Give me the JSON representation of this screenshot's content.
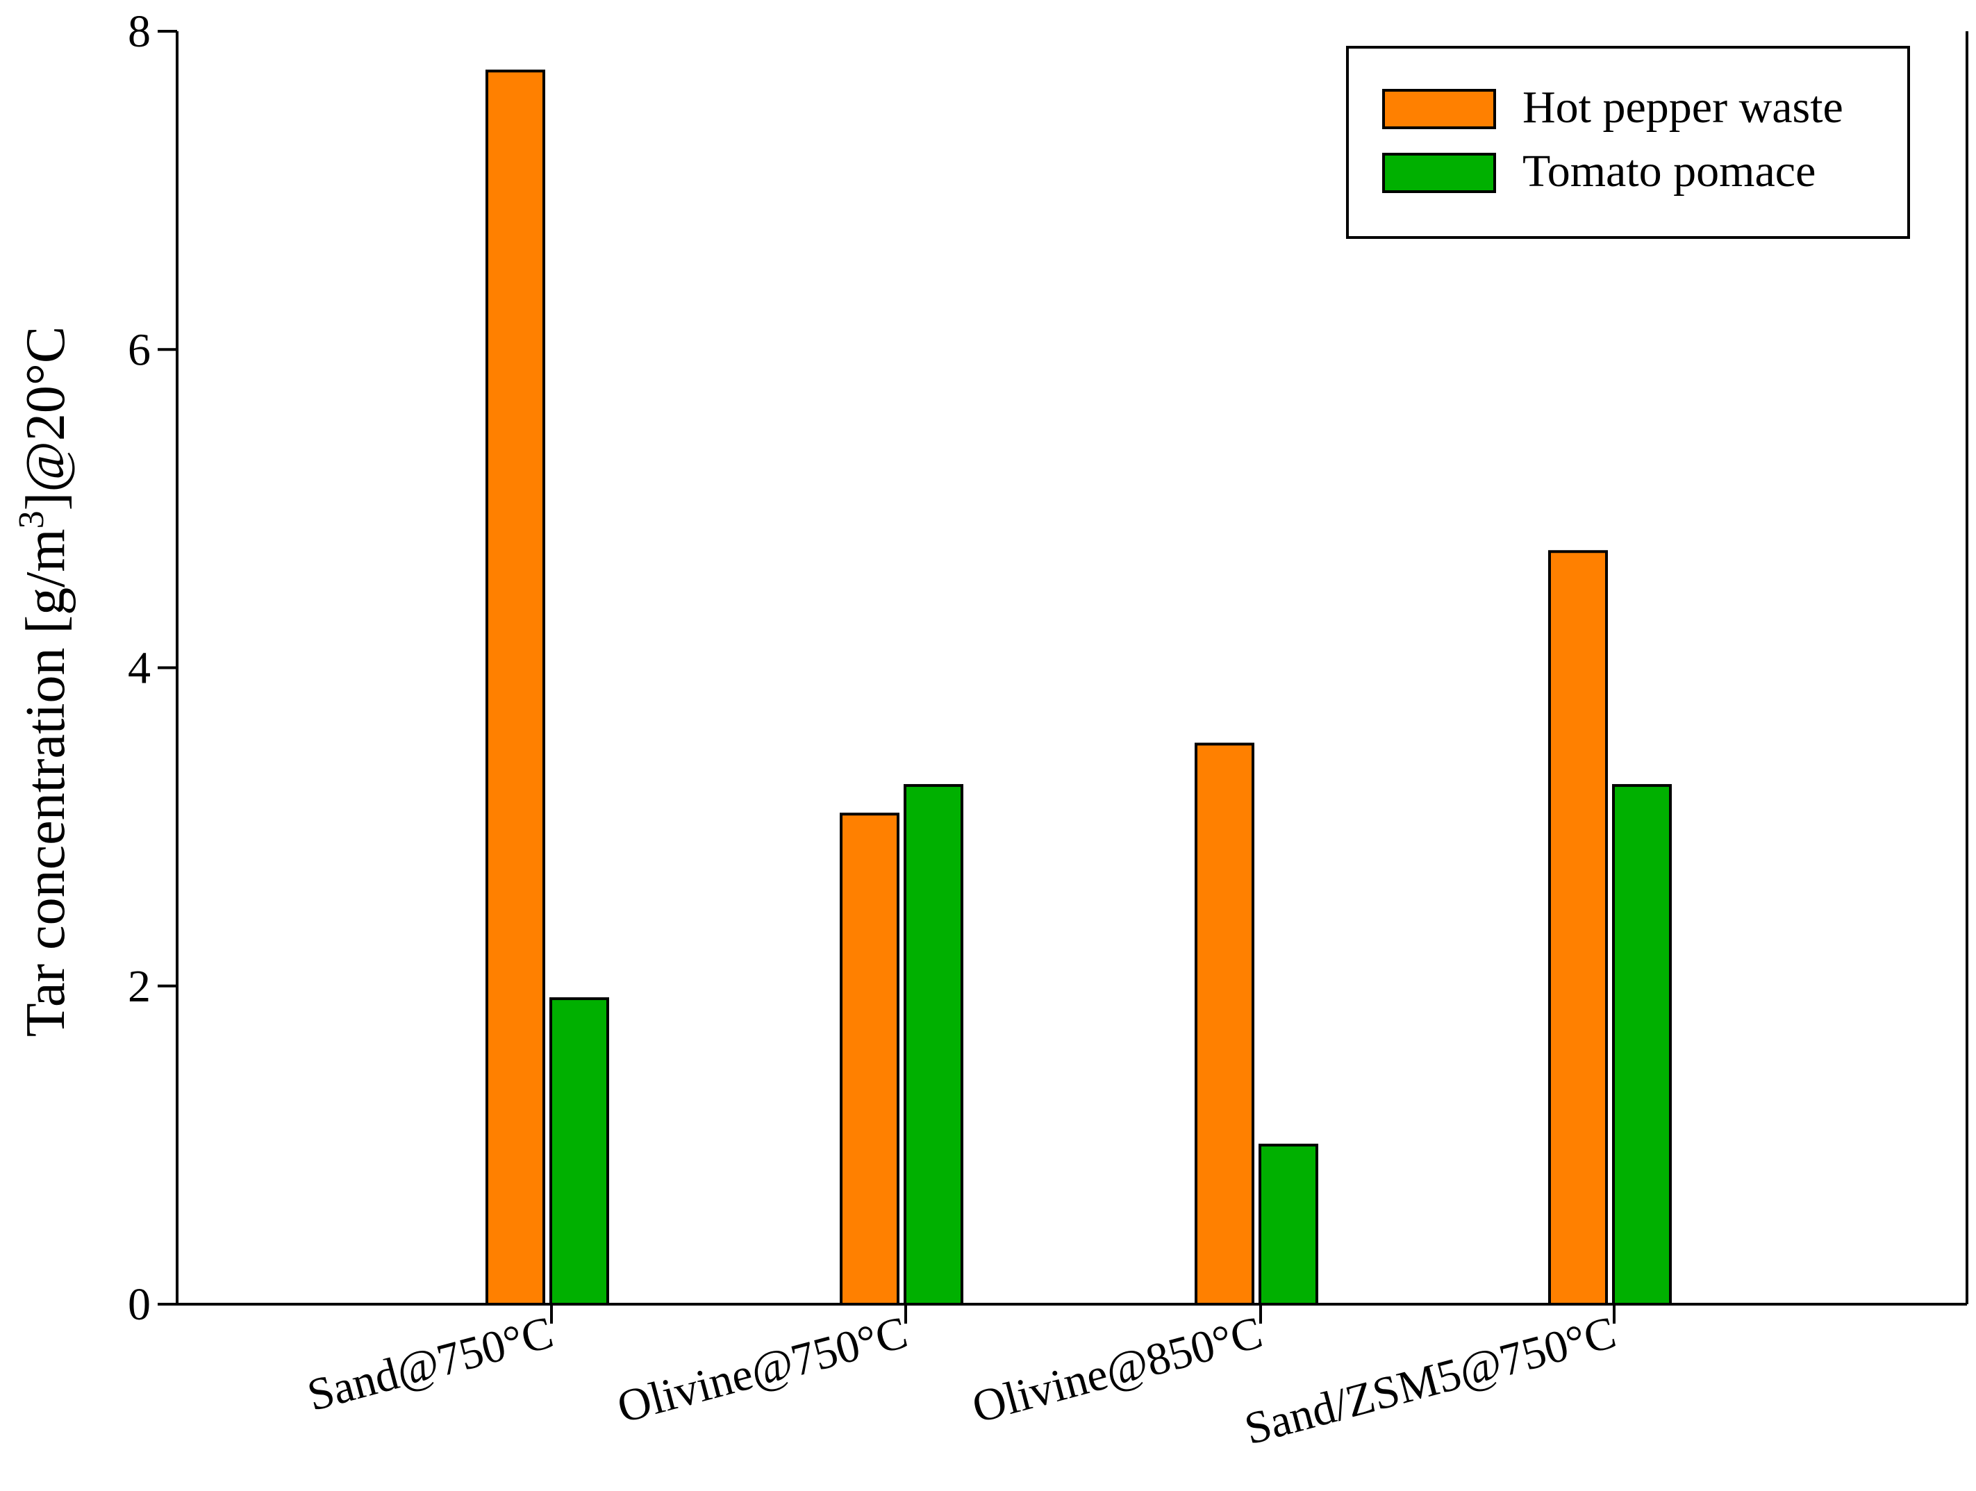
{
  "chart_data": {
    "type": "bar",
    "title": "",
    "xlabel": "",
    "ylabel_parts": [
      "Tar concentration [g/m",
      "3",
      "]@20°C"
    ],
    "ylim": [
      0,
      8
    ],
    "yticks": [
      "0",
      "2",
      "4",
      "6",
      "8"
    ],
    "categories": [
      "Sand@750°C",
      "Olivine@750°C",
      "Olivine@850°C",
      "Sand/ZSM5@750°C"
    ],
    "series": [
      {
        "name": "Hot pepper waste",
        "color": "#FF8000",
        "values": [
          7.75,
          3.08,
          3.52,
          4.73
        ]
      },
      {
        "name": "Tomato pomace",
        "color": "#00B000",
        "values": [
          1.92,
          3.26,
          1.0,
          3.26
        ]
      }
    ],
    "legend": {
      "position": "top-right"
    },
    "grid": false
  }
}
